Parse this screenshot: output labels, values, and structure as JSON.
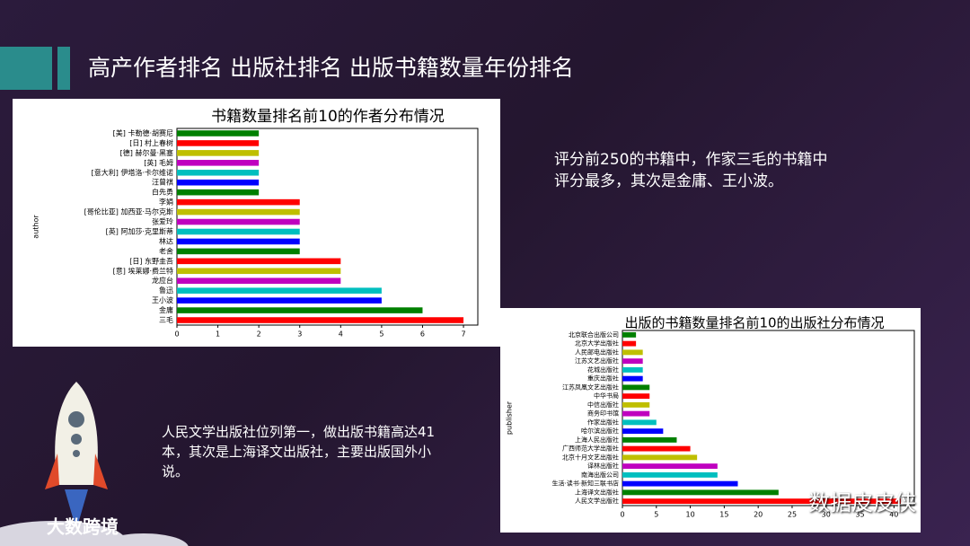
{
  "title": "高产作者排名 出版社排名 出版书籍数量年份排名",
  "notes": [
    "评分前250的书籍中，作家三毛的书籍中评分最多，其次是金庸、王小波。",
    "人民文学出版社位列第一，做出版书籍高达41本，其次是上海译文出版社，主要出版国外小说。"
  ],
  "watermark": "数据皮皮侠",
  "logo": "大数跨境",
  "chart_data": [
    {
      "type": "barh",
      "title": "书籍数量排名前10的作者分布情况",
      "y_label": "author",
      "categories": [
        "三毛",
        "金庸",
        "王小波",
        "鲁迅",
        "龙应台",
        "[意] 埃莱娜·费兰特",
        "[日] 东野圭吾",
        "老舍",
        "林达",
        "[英] 阿加莎·克里斯蒂",
        "张爱玲",
        "[哥伦比亚] 加西亚·马尔克斯",
        "李娟",
        "白先勇",
        "汪曾祺",
        "[意大利] 伊塔洛·卡尔维诺",
        "[英] 毛姆",
        "[德] 赫尔曼·黑塞",
        "[日] 村上春树",
        "[美] 卡勒德·胡赛尼"
      ],
      "values": [
        7,
        6,
        5,
        5,
        4,
        4,
        4,
        3,
        3,
        3,
        3,
        3,
        3,
        2,
        2,
        2,
        2,
        2,
        2,
        2
      ],
      "colors": [
        "#ff0000",
        "#008000",
        "#0000ff",
        "#00bfbf",
        "#bf00bf",
        "#bfbf00",
        "#ff0000",
        "#008000",
        "#0000ff",
        "#00bfbf",
        "#bf00bf",
        "#bfbf00",
        "#ff0000",
        "#008000",
        "#0000ff",
        "#00bfbf",
        "#bf00bf",
        "#bfbf00",
        "#ff0000",
        "#008000"
      ],
      "xlim": [
        0,
        7.35
      ],
      "xticks": [
        0,
        1,
        2,
        3,
        4,
        5,
        6,
        7
      ]
    },
    {
      "type": "barh",
      "title": "出版的书籍数量排名前10的出版社分布情况",
      "y_label": "publisher",
      "categories": [
        "人民文学出版社",
        "上海译文出版社",
        "生活·读书·新知三联书店",
        "南海出版公司",
        "译林出版社",
        "北京十月文艺出版社",
        "广西师范大学出版社",
        "上海人民出版社",
        "哈尔滨出版社",
        "作家出版社",
        "商务印书馆",
        "中信出版社",
        "中华书局",
        "江苏凤凰文艺出版社",
        "重庆出版社",
        "花城出版社",
        "江苏文艺出版社",
        "人民邮电出版社",
        "北京大学出版社",
        "北京联合出版公司"
      ],
      "values": [
        41,
        23,
        17,
        14,
        14,
        11,
        10,
        8,
        6,
        5,
        4,
        4,
        4,
        4,
        3,
        3,
        3,
        3,
        2,
        2
      ],
      "colors": [
        "#ff0000",
        "#008000",
        "#0000ff",
        "#00bfbf",
        "#bf00bf",
        "#bfbf00",
        "#ff0000",
        "#008000",
        "#0000ff",
        "#00bfbf",
        "#bf00bf",
        "#bfbf00",
        "#ff0000",
        "#008000",
        "#0000ff",
        "#00bfbf",
        "#bf00bf",
        "#bfbf00",
        "#ff0000",
        "#008000"
      ],
      "xlim": [
        0,
        43
      ],
      "xticks": [
        0,
        5,
        10,
        15,
        20,
        25,
        30,
        35,
        40
      ]
    }
  ]
}
